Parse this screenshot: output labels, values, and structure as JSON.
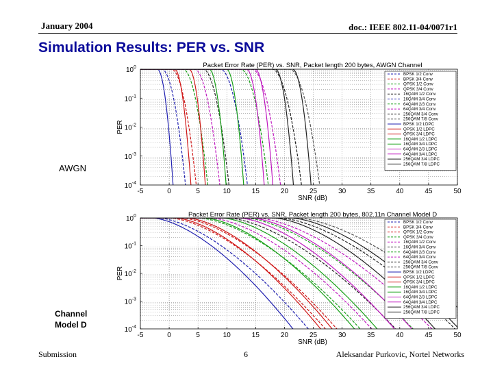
{
  "header": {
    "date": "January 2004",
    "doc_id": "doc.: IEEE 802.11-04/0071r1"
  },
  "slide_title": "Simulation Results: PER vs. SNR",
  "footer": {
    "left": "Submission",
    "page": "6",
    "author": "Aleksandar Purkovic, Nortel Networks"
  },
  "colors": {
    "title": "#0b0b9a",
    "grid": "#777777"
  },
  "chart_data": [
    {
      "type": "line",
      "side_label": "AWGN",
      "title": "Packet Error Rate (PER) vs. SNR, Packet length 200 bytes, AWGN Channel",
      "xlabel": "SNR (dB)",
      "ylabel": "PER",
      "xlim": [
        -5,
        50
      ],
      "ylim_exp": [
        -4,
        0
      ],
      "xticks": [
        -5,
        0,
        5,
        10,
        15,
        20,
        25,
        30,
        35,
        40,
        45,
        50
      ],
      "ytick_labels": [
        "10^0",
        "10^-1",
        "10^-2",
        "10^-3",
        "10^-4"
      ],
      "grid": true,
      "legend_position": "right",
      "legend": [
        "BPSK 1/2 Conv",
        "BPSK 3/4 Conv",
        "QPSK 1/2 Conv",
        "QPSK 3/4 Conv",
        "16QAM 1/2 Conv",
        "16QAM 3/4 Conv",
        "64QAM 2/3 Conv",
        "64QAM 3/4 Conv",
        "256QAM 3/4 Conv",
        "256QAM 7/8 Conv",
        "BPSK 1/2 LDPC",
        "QPSK 1/2 LDPC",
        "QPSK 3/4 LDPC",
        "16QAM 1/2 LDPC",
        "16QAM 3/4 LDPC",
        "64QAM 2/3 LDPC",
        "64QAM 3/4 LDPC",
        "256QAM 3/4 LDPC",
        "256QAM 7/8 LDPC"
      ],
      "series": [
        {
          "name": "BPSK 1/2 Conv",
          "color": "#1f1fb0",
          "dash": true,
          "snr_at_per1": -1.2,
          "slope": 1.3
        },
        {
          "name": "BPSK 3/4 Conv",
          "color": "#d01818",
          "dash": true,
          "snr_at_per1": 0.5,
          "slope": 1.2
        },
        {
          "name": "QPSK 1/2 Conv",
          "color": "#18a018",
          "dash": true,
          "snr_at_per1": 2.5,
          "slope": 1.2
        },
        {
          "name": "QPSK 3/4 Conv",
          "color": "#c018c0",
          "dash": true,
          "snr_at_per1": 4.5,
          "slope": 1.15
        },
        {
          "name": "16QAM 1/2 Conv",
          "color": "#222222",
          "dash": true,
          "snr_at_per1": 6.0,
          "slope": 1.1
        },
        {
          "name": "16QAM 3/4 Conv",
          "color": "#1f1fb0",
          "dash": true,
          "snr_at_per1": 9.0,
          "slope": 1.0
        },
        {
          "name": "64QAM 2/3 Conv",
          "color": "#18a018",
          "dash": true,
          "snr_at_per1": 12.5,
          "slope": 0.95
        },
        {
          "name": "64QAM 3/4 Conv",
          "color": "#c018c0",
          "dash": true,
          "snr_at_per1": 14.5,
          "slope": 0.9
        },
        {
          "name": "256QAM 3/4 Conv",
          "color": "#222222",
          "dash": true,
          "snr_at_per1": 18.0,
          "slope": 0.85
        },
        {
          "name": "256QAM 7/8 Conv",
          "color": "#555555",
          "dash": true,
          "snr_at_per1": 21.0,
          "slope": 0.8
        },
        {
          "name": "BPSK 1/2 LDPC",
          "color": "#1f1fb0",
          "dash": false,
          "snr_at_per1": -2.0,
          "slope": 3.0
        },
        {
          "name": "QPSK 1/2 LDPC",
          "color": "#d01818",
          "dash": false,
          "snr_at_per1": 1.0,
          "slope": 2.8
        },
        {
          "name": "QPSK 3/4 LDPC",
          "color": "#d01818",
          "dash": false,
          "snr_at_per1": 3.5,
          "slope": 2.8
        },
        {
          "name": "16QAM 1/2 LDPC",
          "color": "#18a018",
          "dash": false,
          "snr_at_per1": 7.0,
          "slope": 2.6
        },
        {
          "name": "16QAM 3/4 LDPC",
          "color": "#18a018",
          "dash": false,
          "snr_at_per1": 10.0,
          "slope": 2.5
        },
        {
          "name": "64QAM 2/3 LDPC",
          "color": "#c018c0",
          "dash": false,
          "snr_at_per1": 13.5,
          "slope": 2.4
        },
        {
          "name": "64QAM 3/4 LDPC",
          "color": "#c018c0",
          "dash": false,
          "snr_at_per1": 15.0,
          "slope": 2.4
        },
        {
          "name": "256QAM 3/4 LDPC",
          "color": "#222222",
          "dash": false,
          "snr_at_per1": 18.5,
          "slope": 2.3
        },
        {
          "name": "256QAM 7/8 LDPC",
          "color": "#222222",
          "dash": false,
          "snr_at_per1": 21.5,
          "slope": 2.2
        }
      ]
    },
    {
      "type": "line",
      "side_label": "Channel Model D",
      "title": "Packet Error Rate (PER) vs. SNR, Packet length 200 bytes, 802.11n Channel Model D",
      "xlabel": "SNR (dB)",
      "ylabel": "PER",
      "xlim": [
        -5,
        50
      ],
      "ylim_exp": [
        -4,
        0
      ],
      "xticks": [
        -5,
        0,
        5,
        10,
        15,
        20,
        25,
        30,
        35,
        40,
        45,
        50
      ],
      "ytick_labels": [
        "10^0",
        "10^-1",
        "10^-2",
        "10^-3",
        "10^-4"
      ],
      "grid": true,
      "legend_position": "right",
      "legend": [
        "BPSK 1/2 Conv",
        "BPSK 3/4 Conv",
        "QPSK 1/2 Conv",
        "QPSK 3/4 Conv",
        "16QAM 1/2 Conv",
        "16QAM 3/4 Conv",
        "64QAM 2/3 Conv",
        "64QAM 3/4 Conv",
        "256QAM 3/4 Conv",
        "256QAM 7/8 Conv",
        "BPSK 1/2 LDPC",
        "QPSK 1/2 LDPC",
        "QPSK 3/4 LDPC",
        "16QAM 1/2 LDPC",
        "16QAM 3/4 LDPC",
        "64QAM 2/3 LDPC",
        "64QAM 3/4 LDPC",
        "256QAM 3/4 LDPC",
        "256QAM 7/8 LDPC"
      ],
      "series": [
        {
          "name": "BPSK 1/2 Conv",
          "color": "#1f1fb0",
          "dash": true,
          "snr_at_per1": -2.0,
          "slope": 0.18
        },
        {
          "name": "BPSK 3/4 Conv",
          "color": "#d01818",
          "dash": true,
          "snr_at_per1": 0.0,
          "slope": 0.17
        },
        {
          "name": "QPSK 1/2 Conv",
          "color": "#d01818",
          "dash": true,
          "snr_at_per1": 2.0,
          "slope": 0.17
        },
        {
          "name": "QPSK 3/4 Conv",
          "color": "#18a018",
          "dash": true,
          "snr_at_per1": 5.0,
          "slope": 0.16
        },
        {
          "name": "16QAM 1/2 Conv",
          "color": "#c018c0",
          "dash": true,
          "snr_at_per1": 7.0,
          "slope": 0.16
        },
        {
          "name": "16QAM 3/4 Conv",
          "color": "#222222",
          "dash": true,
          "snr_at_per1": 10.0,
          "slope": 0.15
        },
        {
          "name": "64QAM 2/3 Conv",
          "color": "#18a018",
          "dash": true,
          "snr_at_per1": 13.0,
          "slope": 0.15
        },
        {
          "name": "64QAM 3/4 Conv",
          "color": "#c018c0",
          "dash": true,
          "snr_at_per1": 15.0,
          "slope": 0.14
        },
        {
          "name": "256QAM 3/4 Conv",
          "color": "#222222",
          "dash": true,
          "snr_at_per1": 19.0,
          "slope": 0.14
        },
        {
          "name": "256QAM 7/8 Conv",
          "color": "#555555",
          "dash": true,
          "snr_at_per1": 22.0,
          "slope": 0.13
        },
        {
          "name": "BPSK 1/2 LDPC",
          "color": "#1f1fb0",
          "dash": false,
          "snr_at_per1": -3.0,
          "slope": 0.2
        },
        {
          "name": "QPSK 1/2 LDPC",
          "color": "#d01818",
          "dash": false,
          "snr_at_per1": 1.0,
          "slope": 0.19
        },
        {
          "name": "QPSK 3/4 LDPC",
          "color": "#d01818",
          "dash": false,
          "snr_at_per1": 3.0,
          "slope": 0.19
        },
        {
          "name": "16QAM 1/2 LDPC",
          "color": "#18a018",
          "dash": false,
          "snr_at_per1": 6.0,
          "slope": 0.18
        },
        {
          "name": "16QAM 3/4 LDPC",
          "color": "#18a018",
          "dash": false,
          "snr_at_per1": 9.0,
          "slope": 0.17
        },
        {
          "name": "64QAM 2/3 LDPC",
          "color": "#c018c0",
          "dash": false,
          "snr_at_per1": 12.0,
          "slope": 0.17
        },
        {
          "name": "64QAM 3/4 LDPC",
          "color": "#c018c0",
          "dash": false,
          "snr_at_per1": 14.0,
          "slope": 0.16
        },
        {
          "name": "256QAM 3/4 LDPC",
          "color": "#222222",
          "dash": false,
          "snr_at_per1": 18.0,
          "slope": 0.16
        },
        {
          "name": "256QAM 7/8 LDPC",
          "color": "#222222",
          "dash": false,
          "snr_at_per1": 21.0,
          "slope": 0.15
        }
      ]
    }
  ]
}
